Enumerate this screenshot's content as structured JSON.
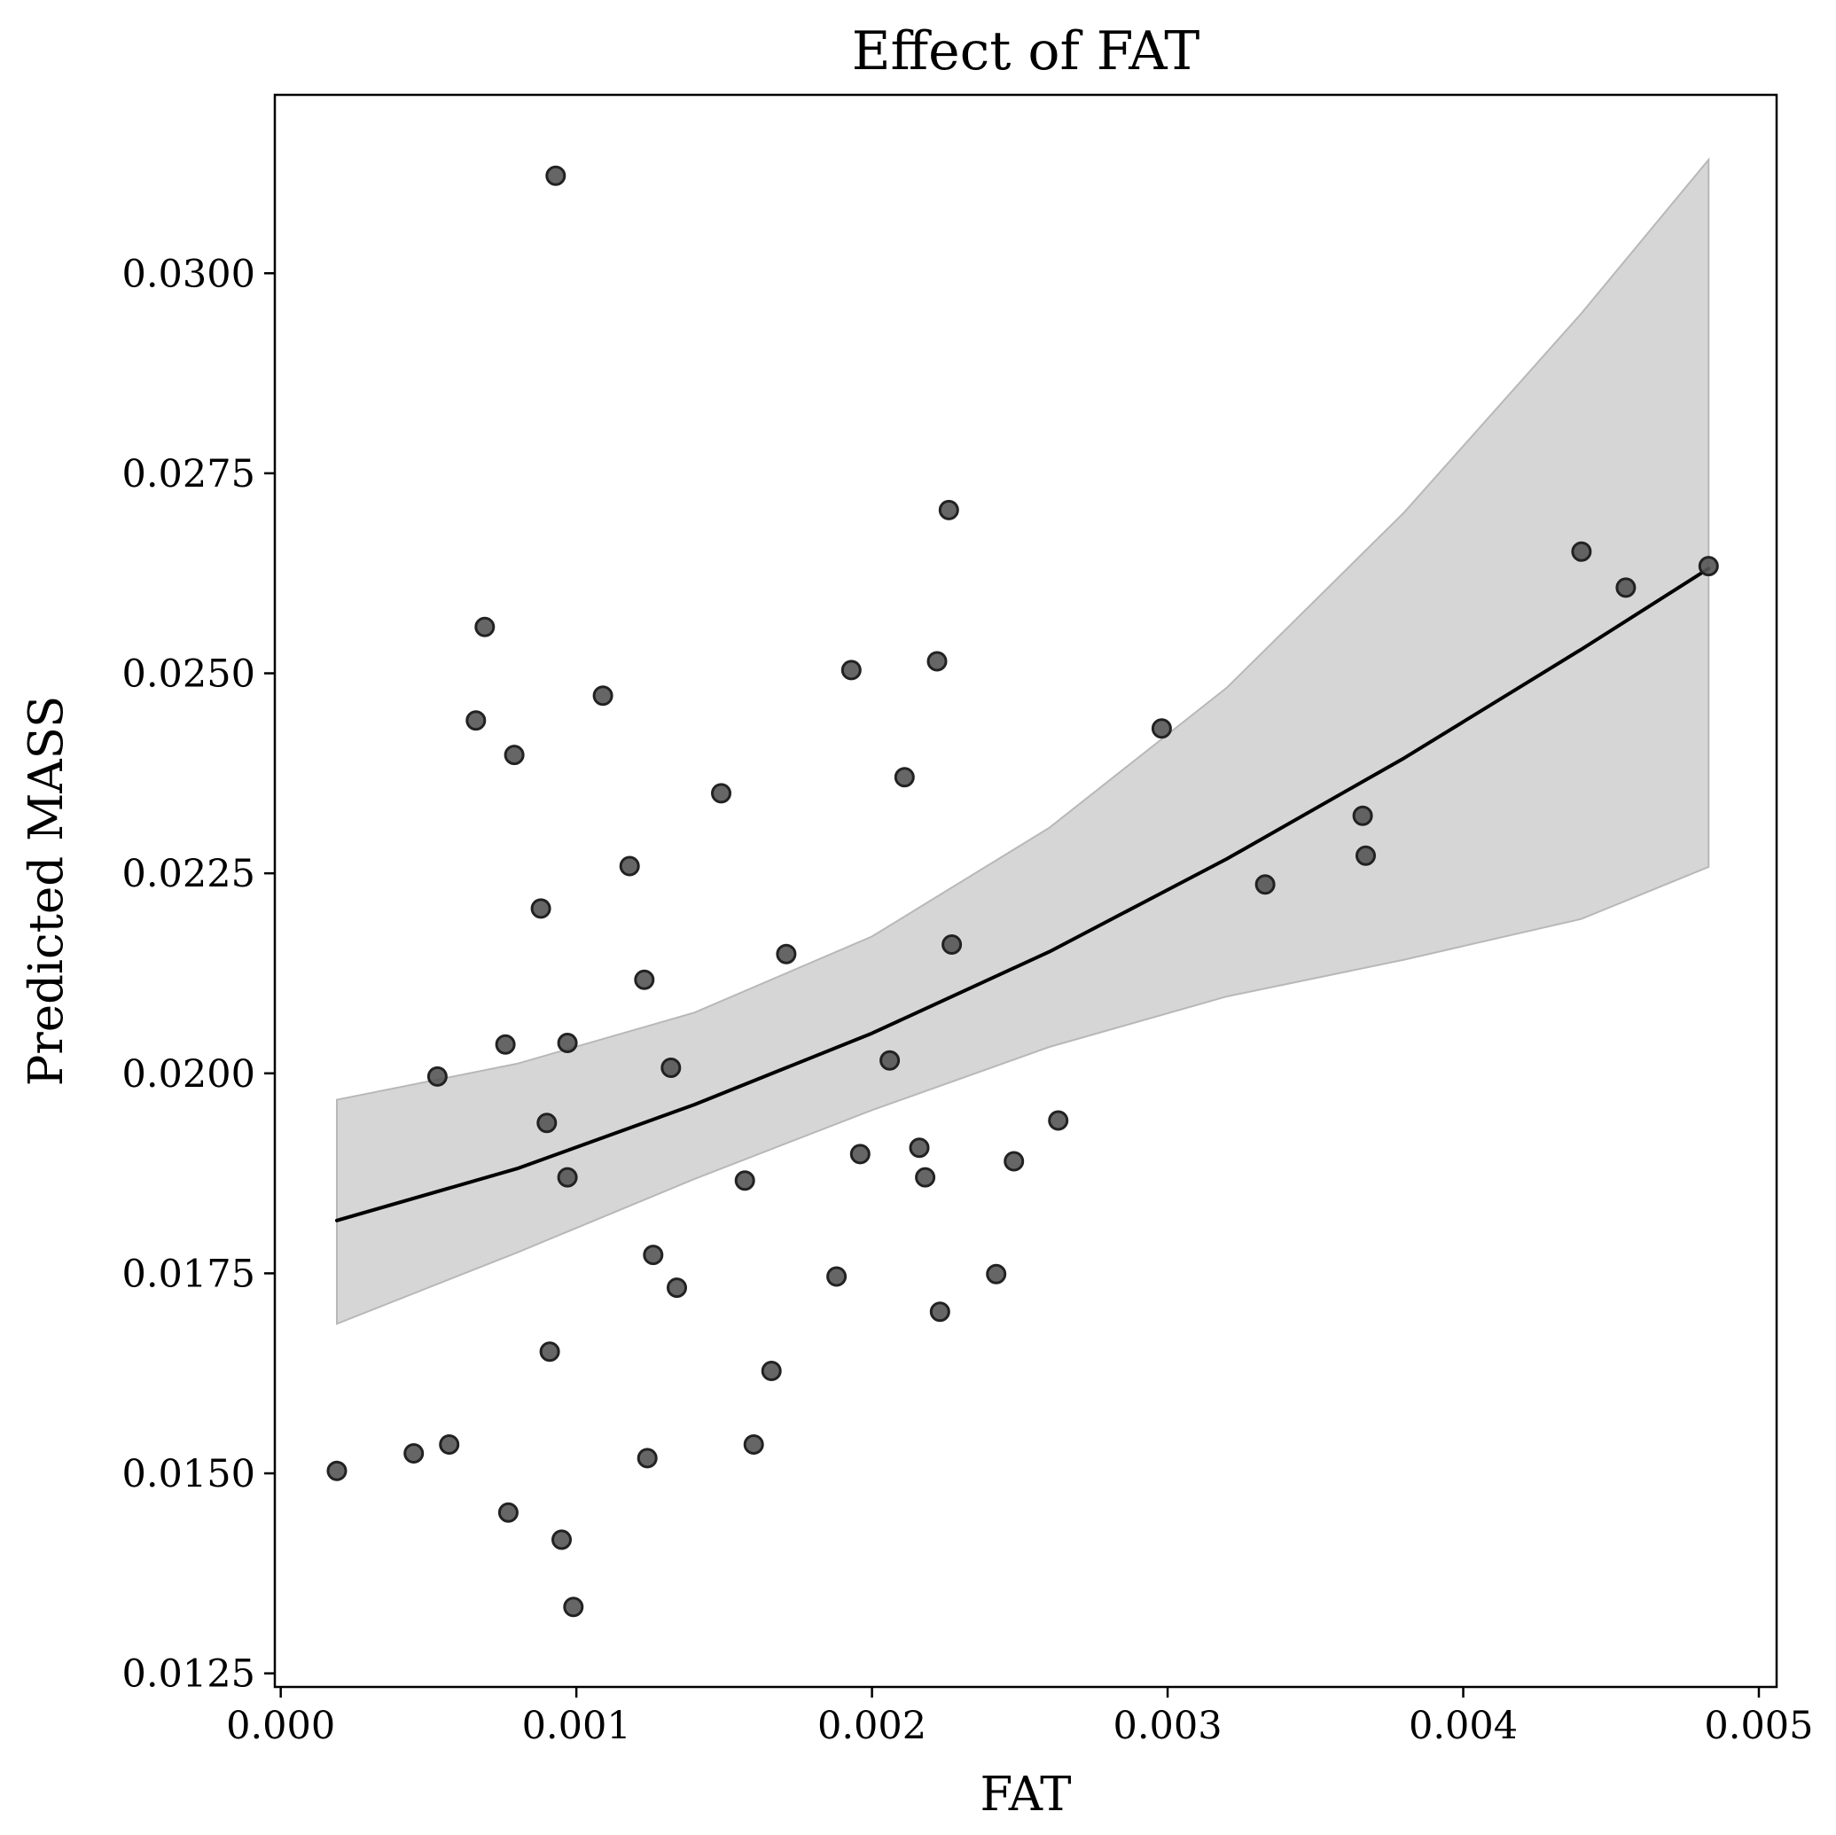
{
  "chart_data": {
    "type": "scatter",
    "title": "Effect of FAT",
    "xlabel": "FAT",
    "ylabel": "Predicted MASS",
    "xlim": [
      -2e-05,
      0.00506
    ],
    "ylim": [
      0.01233,
      0.03223
    ],
    "xticks": [
      {
        "value": 0.0,
        "label": "0.000"
      },
      {
        "value": 0.001,
        "label": "0.001"
      },
      {
        "value": 0.002,
        "label": "0.002"
      },
      {
        "value": 0.003,
        "label": "0.003"
      },
      {
        "value": 0.004,
        "label": "0.004"
      },
      {
        "value": 0.005,
        "label": "0.005"
      }
    ],
    "yticks": [
      {
        "value": 0.0125,
        "label": "0.0125"
      },
      {
        "value": 0.015,
        "label": "0.0150"
      },
      {
        "value": 0.0175,
        "label": "0.0175"
      },
      {
        "value": 0.02,
        "label": "0.0200"
      },
      {
        "value": 0.0225,
        "label": "0.0225"
      },
      {
        "value": 0.025,
        "label": "0.0250"
      },
      {
        "value": 0.0275,
        "label": "0.0275"
      },
      {
        "value": 0.03,
        "label": "0.0300"
      }
    ],
    "grid": false,
    "legend": "none",
    "colors": {
      "points": "#555555",
      "point_edge": "#222222",
      "fit_line": "#000000",
      "confidence_band": "#d6d6d6",
      "band_edge": "#b8b8b8"
    },
    "points": [
      [
        0.00019,
        0.01503
      ],
      [
        0.00045,
        0.01525
      ],
      [
        0.00057,
        0.01536
      ],
      [
        0.00053,
        0.01996
      ],
      [
        0.00066,
        0.02441
      ],
      [
        0.00069,
        0.02558
      ],
      [
        0.00076,
        0.02036
      ],
      [
        0.00077,
        0.01451
      ],
      [
        0.00079,
        0.02398
      ],
      [
        0.00088,
        0.02206
      ],
      [
        0.0009,
        0.01938
      ],
      [
        0.00091,
        0.01652
      ],
      [
        0.00093,
        0.03122
      ],
      [
        0.00095,
        0.01417
      ],
      [
        0.00097,
        0.02038
      ],
      [
        0.00097,
        0.0187
      ],
      [
        0.00099,
        0.01333
      ],
      [
        0.00109,
        0.02472
      ],
      [
        0.00118,
        0.02259
      ],
      [
        0.00123,
        0.02117
      ],
      [
        0.00124,
        0.01519
      ],
      [
        0.00126,
        0.01773
      ],
      [
        0.00132,
        0.02007
      ],
      [
        0.00134,
        0.01732
      ],
      [
        0.00149,
        0.0235
      ],
      [
        0.00157,
        0.01866
      ],
      [
        0.0016,
        0.01536
      ],
      [
        0.00166,
        0.01628
      ],
      [
        0.00171,
        0.02149
      ],
      [
        0.00188,
        0.01746
      ],
      [
        0.00193,
        0.02504
      ],
      [
        0.00196,
        0.01899
      ],
      [
        0.00206,
        0.02016
      ],
      [
        0.00211,
        0.0237
      ],
      [
        0.00216,
        0.01907
      ],
      [
        0.00218,
        0.0187
      ],
      [
        0.00222,
        0.02515
      ],
      [
        0.00223,
        0.01702
      ],
      [
        0.00226,
        0.02704
      ],
      [
        0.00227,
        0.02161
      ],
      [
        0.00242,
        0.01749
      ],
      [
        0.00248,
        0.0189
      ],
      [
        0.00263,
        0.01941
      ],
      [
        0.00298,
        0.02431
      ],
      [
        0.00333,
        0.02236
      ],
      [
        0.00366,
        0.02322
      ],
      [
        0.00367,
        0.02272
      ],
      [
        0.0044,
        0.02652
      ],
      [
        0.00455,
        0.02607
      ],
      [
        0.00483,
        0.02634
      ]
    ],
    "fit_line": {
      "x": [
        0.00019,
        0.0008,
        0.0014,
        0.002,
        0.0026,
        0.0032,
        0.0038,
        0.0044,
        0.00483
      ],
      "y": [
        0.01816,
        0.01881,
        0.01961,
        0.0205,
        0.02152,
        0.02268,
        0.02394,
        0.0253,
        0.02631
      ]
    },
    "confidence_band": {
      "x": [
        0.00019,
        0.0008,
        0.0014,
        0.002,
        0.0026,
        0.0032,
        0.0038,
        0.0044,
        0.00483
      ],
      "upper": [
        0.01967,
        0.02012,
        0.02076,
        0.02171,
        0.02307,
        0.02482,
        0.02701,
        0.0295,
        0.03142
      ],
      "lower": [
        0.01687,
        0.01776,
        0.01868,
        0.01954,
        0.02033,
        0.02096,
        0.02142,
        0.02193,
        0.02258
      ]
    }
  }
}
